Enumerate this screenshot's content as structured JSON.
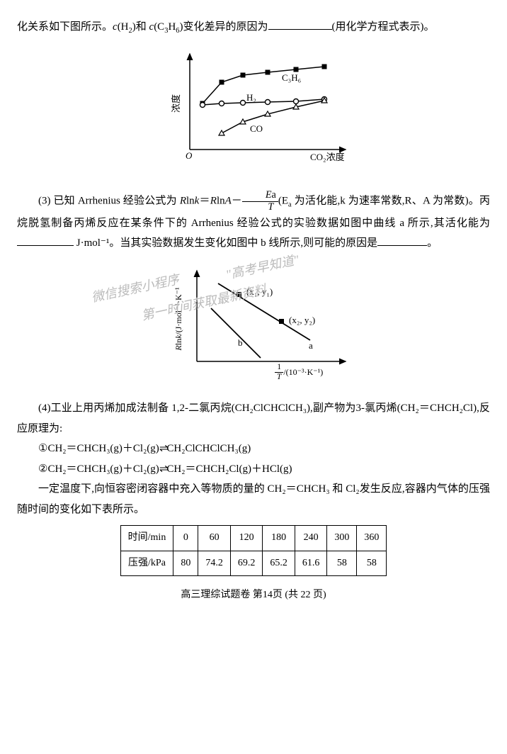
{
  "p1a": "化关系如下图所示。",
  "p1b": "变化差异的原因为",
  "p1c": "(用化学方程式表示)。",
  "chart1": {
    "ylab": "浓度",
    "xlab": "CO₂浓度",
    "series": [
      {
        "name": "C₃H₆",
        "pts": [
          [
            18,
            70
          ],
          [
            45,
            40
          ],
          [
            75,
            30
          ],
          [
            110,
            26
          ],
          [
            150,
            22
          ],
          [
            190,
            18
          ]
        ],
        "color": "#000",
        "marker": "sq"
      },
      {
        "name": "H₂",
        "pts": [
          [
            18,
            72
          ],
          [
            45,
            70
          ],
          [
            75,
            69
          ],
          [
            110,
            68
          ],
          [
            150,
            67
          ],
          [
            190,
            64
          ]
        ],
        "color": "#000",
        "marker": "o"
      },
      {
        "name": "CO",
        "pts": [
          [
            45,
            112
          ],
          [
            75,
            96
          ],
          [
            110,
            85
          ],
          [
            150,
            75
          ],
          [
            190,
            66
          ]
        ],
        "color": "#000",
        "marker": "tri"
      }
    ]
  },
  "p3a": "(3) 已知 Arrhenius 经验公式为 ",
  "p3eq1": "Rlnk＝RlnA－",
  "p3eq2": "Ea",
  "p3eq3": "T",
  "p3b": "(E",
  "p3c": " 为活化能,k 为速率常数,R、A 为常数)。丙烷脱氢制备丙烯反应在某条件下的 Arrhenius 经验公式的实验数据如图中曲线 a 所示,其活化能为",
  "p3d": " J·mol⁻¹。当其实验数据发生变化如图中 b 线所示,则可能的原因是",
  "p3e": "。",
  "wm1": "微信搜索小程序",
  "wm2": "\"高考早知道\"",
  "wm3": "第一时间获取最新资料",
  "chart2": {
    "ylab": "Rlnk/(J·mol⁻¹·K⁻¹",
    "xlab_a": "1",
    "xlab_b": "T",
    "xlab_c": "/(10⁻³·K⁻¹)",
    "p1": "(x₁, y₁)",
    "p2": "(x₂, y₂)",
    "la": "a",
    "lb": "b"
  },
  "p4a": "(4)工业上用丙烯加成法制备 1,2-二氯丙烷(CH₂ClCHClCH₃),副产物为3-氯丙烯(CH₂＝CHCH₂Cl),反应原理为:",
  "eq1a": "①CH₂＝CHCH₃(g)＋Cl₂(g)",
  "eq1b": "CH₂ClCHClCH₃(g)",
  "eq2a": "②CH₂＝CHCH₃(g)＋Cl₂(g)",
  "eq2b": "CH₂＝CHCH₂Cl(g)＋HCl(g)",
  "p4b": "一定温度下,向恒容密闭容器中充入等物质的量的 CH₂＝CHCH₃ 和 Cl₂发生反应,容器内气体的压强随时间的变化如下表所示。",
  "table": {
    "h1": "时间/min",
    "h2": "压强/kPa",
    "c": [
      "0",
      "60",
      "120",
      "180",
      "240",
      "300",
      "360"
    ],
    "v": [
      "80",
      "74.2",
      "69.2",
      "65.2",
      "61.6",
      "58",
      "58"
    ]
  },
  "footer": "高三理综试题卷 第14页 (共 22 页)"
}
